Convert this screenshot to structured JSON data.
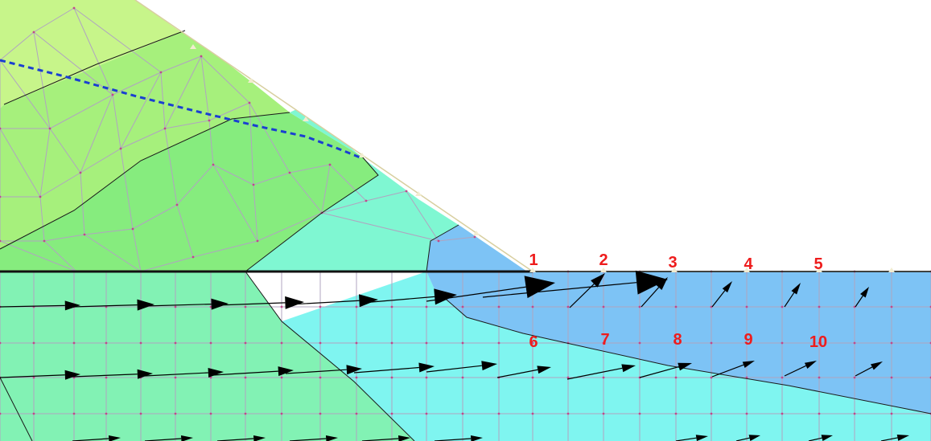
{
  "diagram": {
    "colors": {
      "background": "#ffffff",
      "zones": [
        "#c7f58a",
        "#a6f07c",
        "#86ec7e",
        "#82f2b4",
        "#7ff7d2",
        "#7ff5f0",
        "#7dc3f5"
      ],
      "contour_line": "#1a1a1a",
      "mesh_line": "#b0a4c0",
      "node_dot": "#c04a8c",
      "phreatic_line": "#1a3fd1",
      "ground_line": "#111111",
      "velocity_arrow": "#000000",
      "node_marker": "#f2ecd0",
      "label_color": "#ee1c1c"
    },
    "line_styles": {
      "phreatic_line": "dashed"
    },
    "node_labels": [
      {
        "id": "1",
        "text": "1"
      },
      {
        "id": "2",
        "text": "2"
      },
      {
        "id": "3",
        "text": "3"
      },
      {
        "id": "4",
        "text": "4"
      },
      {
        "id": "5",
        "text": "5"
      },
      {
        "id": "6",
        "text": "6"
      },
      {
        "id": "7",
        "text": "7"
      },
      {
        "id": "8",
        "text": "8"
      },
      {
        "id": "9",
        "text": "9"
      },
      {
        "id": "10",
        "text": "10"
      }
    ]
  }
}
